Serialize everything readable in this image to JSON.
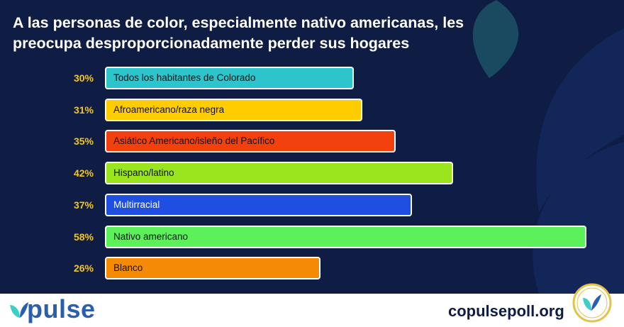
{
  "title_lines": [
    "A las personas de color, especialmente nativo americanas, les",
    "preocupa desproporcionadamente perder sus hogares"
  ],
  "chart_data": {
    "type": "bar",
    "orientation": "horizontal",
    "title": "A las personas de color, especialmente nativo americanas, les preocupa desproporcionadamente perder sus hogares",
    "categories": [
      "Todos los habitantes de Colorado",
      "Afroamericano/raza negra",
      "Asiático Americano/isleño del Pacífico",
      "Hispano/latino",
      "Multirracial",
      "Nativo americano",
      "Blanco"
    ],
    "values": [
      30,
      31,
      35,
      42,
      37,
      58,
      26
    ],
    "value_labels": [
      "30%",
      "31%",
      "35%",
      "42%",
      "37%",
      "58%",
      "26%"
    ],
    "colors": [
      "#2ec4cc",
      "#ffcc00",
      "#f2400f",
      "#9be51e",
      "#1f4fe0",
      "#5cf05a",
      "#f58a07"
    ],
    "label_colors": [
      "#111111",
      "#111111",
      "#111111",
      "#111111",
      "#ffffff",
      "#111111",
      "#111111"
    ],
    "xlim": [
      0,
      100
    ],
    "grid": false
  },
  "footer": {
    "logo_text": "pulse",
    "website": "copulsepoll.org"
  },
  "colors": {
    "background": "#0f1d45",
    "percent": "#f5c518",
    "brand": "#2a5fb0",
    "leaf": "#3ccfc7"
  }
}
